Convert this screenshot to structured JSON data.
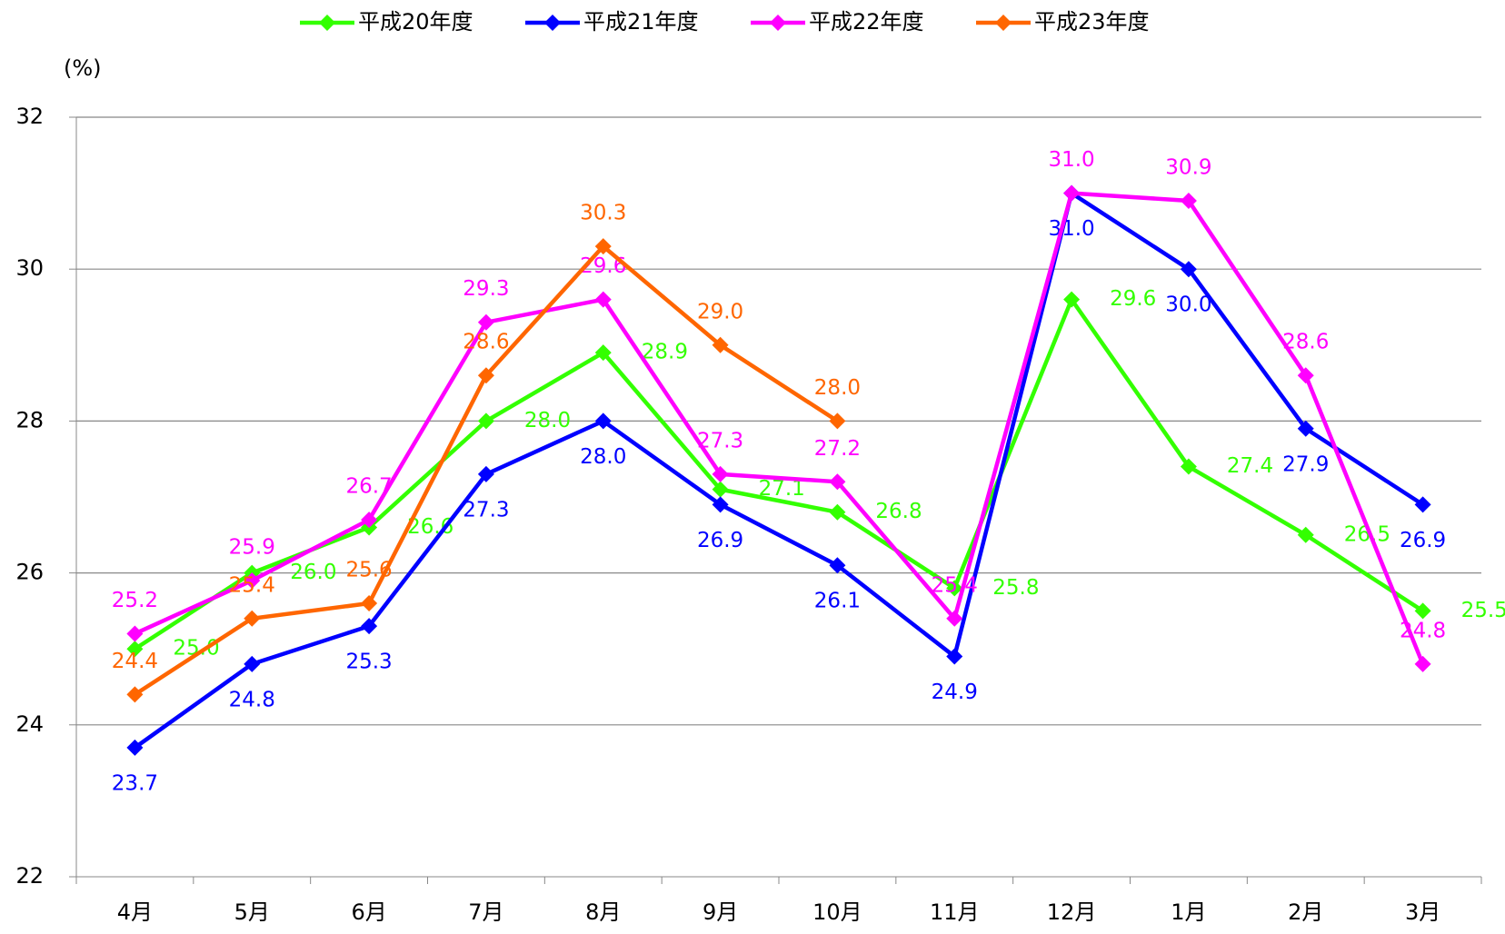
{
  "chart_data": {
    "type": "line",
    "y_label": "(%)",
    "categories": [
      "4月",
      "5月",
      "6月",
      "7月",
      "8月",
      "9月",
      "10月",
      "11月",
      "12月",
      "1月",
      "2月",
      "3月"
    ],
    "series": [
      {
        "name": "平成20年度",
        "color": "#33ff00",
        "values": [
          25.0,
          26.0,
          26.6,
          28.0,
          28.9,
          27.1,
          26.8,
          25.8,
          29.6,
          27.4,
          26.5,
          25.5
        ],
        "value_labels": [
          "25.0",
          "26.0",
          "26.6",
          "28.0",
          "28.9",
          "27.1",
          "26.8",
          "25.8",
          "29.6",
          "27.4",
          "26.5",
          "25.5"
        ]
      },
      {
        "name": "平成21年度",
        "color": "#0000ff",
        "values": [
          23.7,
          24.8,
          25.3,
          27.3,
          28.0,
          26.9,
          26.1,
          24.9,
          31.0,
          30.0,
          27.9,
          26.9
        ],
        "value_labels": [
          "23.7",
          "24.8",
          "25.3",
          "27.3",
          "28.0",
          "26.9",
          "26.1",
          "24.9",
          "31.0",
          "30.0",
          "27.9",
          "26.9"
        ]
      },
      {
        "name": "平成22年度",
        "color": "#ff00ff",
        "values": [
          25.2,
          25.9,
          26.7,
          29.3,
          29.6,
          27.3,
          27.2,
          25.4,
          31.0,
          30.9,
          28.6,
          24.8
        ],
        "value_labels": [
          "25.2",
          "25.9",
          "26.7",
          "29.3",
          "29.6",
          "27.3",
          "27.2",
          "25.4",
          "31.0",
          "30.9",
          "28.6",
          "24.8"
        ]
      },
      {
        "name": "平成23年度",
        "color": "#ff6600",
        "values": [
          24.4,
          25.4,
          25.6,
          28.6,
          30.3,
          29.0,
          28.0,
          null,
          null,
          null,
          null,
          null
        ],
        "value_labels": [
          "24.4",
          "25.4",
          "25.6",
          "28.6",
          "30.3",
          "29.0",
          "28.0",
          null,
          null,
          null,
          null,
          null
        ]
      }
    ],
    "ylim": [
      22,
      32
    ],
    "yticks": [
      22,
      24,
      26,
      28,
      30,
      32
    ],
    "grid": true,
    "legend": "top"
  }
}
